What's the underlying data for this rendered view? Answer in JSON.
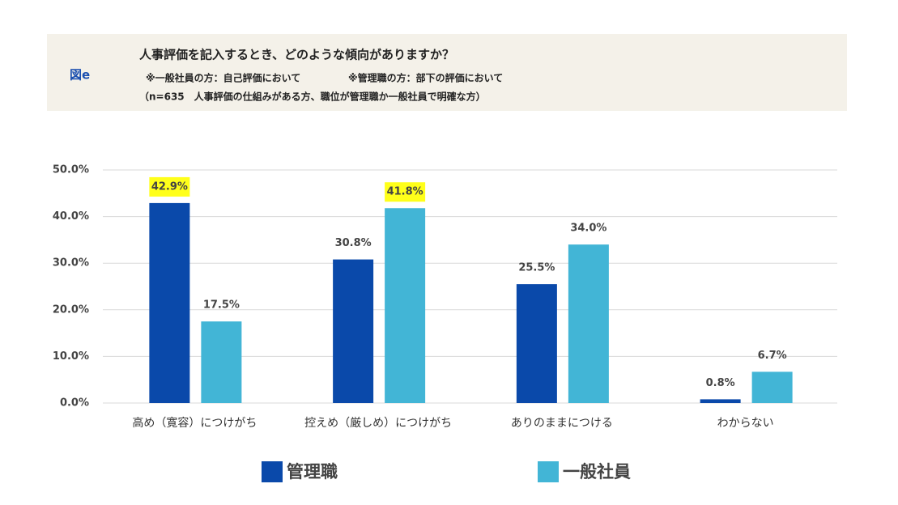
{
  "chart_data": {
    "type": "bar",
    "label": "図e",
    "title": "人事評価を記入するとき、どのような傾向がありますか？",
    "notes": [
      "※一般社員の方：自己評価において",
      "※管理職の方：部下の評価において"
    ],
    "sample_note": "（n=635　人事評価の仕組みがある方、職位が管理職か一般社員で明確な方）",
    "categories": [
      "高め（寛容）につけがち",
      "控えめ（厳しめ）につけがち",
      "ありのままにつける",
      "わからない"
    ],
    "series": [
      {
        "name": "管理職",
        "color": "#0a49aa",
        "values": [
          42.9,
          30.8,
          25.5,
          0.8
        ],
        "value_labels": [
          "42.9%",
          "30.8%",
          "25.5%",
          "0.8%"
        ],
        "highlight": [
          true,
          false,
          false,
          false
        ]
      },
      {
        "name": "一般社員",
        "color": "#42b5d6",
        "values": [
          17.5,
          41.8,
          34.0,
          6.7
        ],
        "value_labels": [
          "17.5%",
          "41.8%",
          "34.0%",
          "6.7%"
        ],
        "highlight": [
          false,
          true,
          false,
          false
        ]
      }
    ],
    "highlight_color": "#ffff1a",
    "ylim": [
      0,
      50
    ],
    "yticks": [
      {
        "value": 0,
        "label": "0.0%"
      },
      {
        "value": 10,
        "label": "10.0%"
      },
      {
        "value": 20,
        "label": "20.0%"
      },
      {
        "value": 30,
        "label": "30.0%"
      },
      {
        "value": 40,
        "label": "40.0%"
      },
      {
        "value": 50,
        "label": "50.0%"
      }
    ],
    "grid": true
  }
}
